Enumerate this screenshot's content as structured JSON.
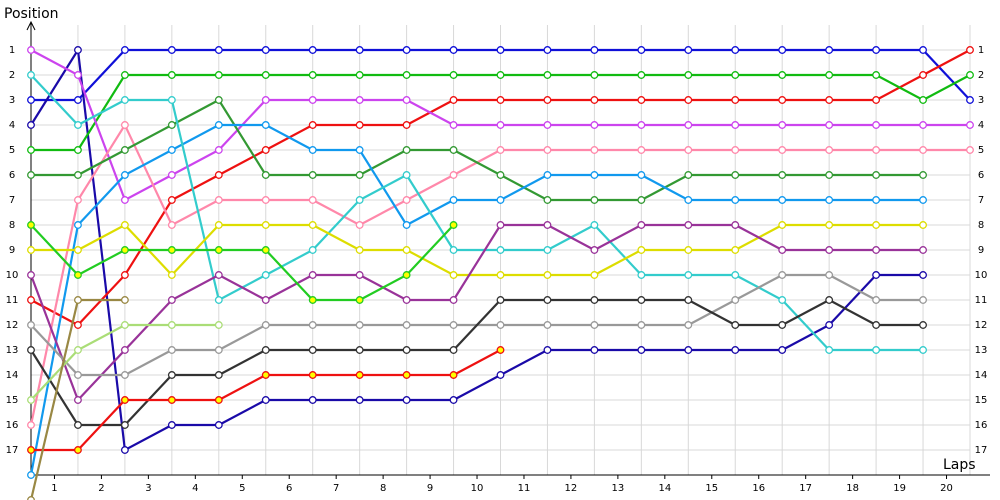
{
  "chart_data": {
    "type": "line",
    "title": "Position",
    "x_label": "Laps",
    "x": [
      0,
      1,
      2,
      3,
      4,
      5,
      6,
      7,
      8,
      9,
      10,
      11,
      12,
      13,
      14,
      15,
      16,
      17,
      18,
      19,
      20
    ],
    "xlim": [
      0,
      20.5
    ],
    "xticks": [
      {
        "value": 0.5,
        "label": "1"
      },
      {
        "value": 1.5,
        "label": "2"
      },
      {
        "value": 2.5,
        "label": "3"
      },
      {
        "value": 3.5,
        "label": "4"
      },
      {
        "value": 4.5,
        "label": "5"
      },
      {
        "value": 5.5,
        "label": "6"
      },
      {
        "value": 6.5,
        "label": "7"
      },
      {
        "value": 7.5,
        "label": "8"
      },
      {
        "value": 8.5,
        "label": "9"
      },
      {
        "value": 9.5,
        "label": "10"
      },
      {
        "value": 10.5,
        "label": "11"
      },
      {
        "value": 11.5,
        "label": "12"
      },
      {
        "value": 12.5,
        "label": "13"
      },
      {
        "value": 13.5,
        "label": "14"
      },
      {
        "value": 14.5,
        "label": "15"
      },
      {
        "value": 15.5,
        "label": "16"
      },
      {
        "value": 16.5,
        "label": "17"
      },
      {
        "value": 17.5,
        "label": "18"
      },
      {
        "value": 18.5,
        "label": "19"
      },
      {
        "value": 19.5,
        "label": "20"
      }
    ],
    "ylim": [
      19,
      0
    ],
    "yticks": [
      1,
      2,
      3,
      4,
      5,
      6,
      7,
      8,
      9,
      10,
      11,
      12,
      13,
      14,
      15,
      16,
      17
    ],
    "grid": true,
    "series": [
      {
        "color": "#1010d8",
        "values": [
          3,
          3,
          1,
          1,
          1,
          1,
          1,
          1,
          1,
          1,
          1,
          1,
          1,
          1,
          1,
          1,
          1,
          1,
          1,
          1,
          3
        ]
      },
      {
        "color": "#1a0aa8",
        "values": [
          4,
          1,
          17,
          16,
          16,
          15,
          15,
          15,
          15,
          15,
          14,
          13,
          13,
          13,
          13,
          13,
          13,
          12,
          10,
          10,
          null
        ]
      },
      {
        "color": "#ee1111",
        "values": [
          11,
          12,
          10,
          7,
          6,
          5,
          4,
          4,
          4,
          3,
          3,
          3,
          3,
          3,
          3,
          3,
          3,
          3,
          3,
          2,
          1
        ]
      },
      {
        "color": "#11bb11",
        "values": [
          5,
          5,
          2,
          2,
          2,
          2,
          2,
          2,
          2,
          2,
          2,
          2,
          2,
          2,
          2,
          2,
          2,
          2,
          2,
          3,
          2
        ]
      },
      {
        "color": "#cc44ee",
        "values": [
          1,
          2,
          7,
          6,
          5,
          3,
          3,
          3,
          3,
          4,
          4,
          4,
          4,
          4,
          4,
          4,
          4,
          4,
          4,
          4,
          4
        ]
      },
      {
        "color": "#ff88aa",
        "values": [
          16,
          7,
          4,
          8,
          7,
          7,
          7,
          8,
          7,
          6,
          5,
          5,
          5,
          5,
          5,
          5,
          5,
          5,
          5,
          5,
          5
        ]
      },
      {
        "color": "#339933",
        "values": [
          6,
          6,
          5,
          4,
          3,
          6,
          6,
          6,
          5,
          5,
          6,
          7,
          7,
          7,
          6,
          6,
          6,
          6,
          6,
          6,
          null
        ]
      },
      {
        "color": "#1199ee",
        "values": [
          18,
          8,
          6,
          5,
          4,
          4,
          5,
          5,
          8,
          7,
          7,
          6,
          6,
          6,
          7,
          7,
          7,
          7,
          7,
          7,
          null
        ]
      },
      {
        "color": "#33cccc",
        "values": [
          2,
          4,
          3,
          3,
          11,
          10,
          9,
          7,
          6,
          9,
          9,
          9,
          8,
          10,
          10,
          10,
          11,
          13,
          13,
          13,
          null
        ]
      },
      {
        "color": "#dddd00",
        "values": [
          9,
          9,
          8,
          10,
          8,
          8,
          8,
          9,
          9,
          10,
          10,
          10,
          10,
          9,
          9,
          9,
          8,
          8,
          8,
          8,
          null
        ]
      },
      {
        "color": "#993399",
        "values": [
          10,
          15,
          13,
          11,
          10,
          11,
          10,
          10,
          11,
          11,
          8,
          8,
          9,
          8,
          8,
          8,
          9,
          9,
          9,
          9,
          null
        ]
      },
      {
        "color": "#999999",
        "values": [
          12,
          14,
          14,
          13,
          13,
          12,
          12,
          12,
          12,
          12,
          12,
          12,
          12,
          12,
          12,
          11,
          10,
          10,
          11,
          11,
          null
        ]
      },
      {
        "color": "#333333",
        "values": [
          13,
          16,
          16,
          14,
          14,
          13,
          13,
          13,
          13,
          13,
          11,
          11,
          11,
          11,
          11,
          12,
          12,
          11,
          12,
          12,
          null
        ]
      },
      {
        "color": "#22cc22",
        "marker_fill": "#ffff00",
        "values": [
          8,
          10,
          9,
          9,
          9,
          9,
          11,
          11,
          10,
          8,
          null,
          null,
          null,
          null,
          null,
          null,
          null,
          null,
          null,
          null,
          null
        ]
      },
      {
        "color": "#ee1111",
        "marker_fill": "#ffff00",
        "values": [
          17,
          17,
          15,
          15,
          15,
          14,
          14,
          14,
          14,
          14,
          13,
          null,
          null,
          null,
          null,
          null,
          null,
          null,
          null,
          null,
          null
        ]
      },
      {
        "color": "#aadd77",
        "values": [
          15,
          13,
          12,
          12,
          12,
          null,
          null,
          null,
          null,
          null,
          null,
          null,
          null,
          null,
          null,
          null,
          null,
          null,
          null,
          null,
          null
        ]
      },
      {
        "color": "#998844",
        "values": [
          19,
          11,
          11,
          null,
          null,
          null,
          null,
          null,
          null,
          null,
          null,
          null,
          null,
          null,
          null,
          null,
          null,
          null,
          null,
          null,
          null
        ]
      }
    ]
  }
}
